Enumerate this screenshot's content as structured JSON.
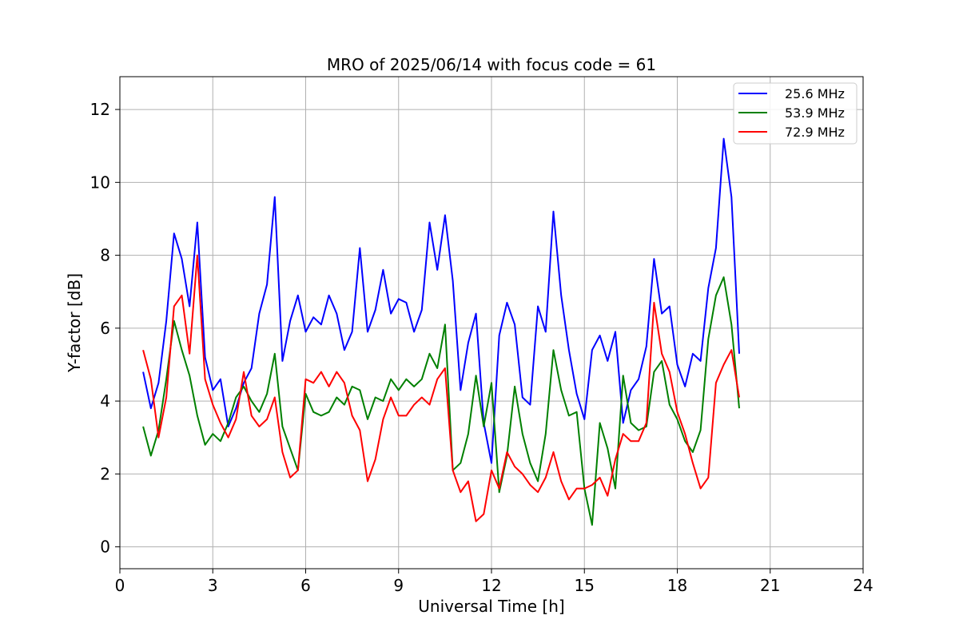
{
  "chart_data": {
    "type": "line",
    "title": "MRO of 2025/06/14 with focus code = 61",
    "xlabel": "Universal Time [h]",
    "ylabel": "Y-factor [dB]",
    "xlim": [
      0,
      24
    ],
    "ylim": [
      -0.6,
      12.9
    ],
    "xticks": [
      0,
      3,
      6,
      9,
      12,
      15,
      18,
      21,
      24
    ],
    "yticks": [
      0,
      2,
      4,
      6,
      8,
      10,
      12
    ],
    "grid": true,
    "legend_position": "top-right",
    "series": [
      {
        "name": "25.6 MHz",
        "color": "#0000ff",
        "x": [
          0.75,
          1.0,
          1.25,
          1.5,
          1.75,
          2.0,
          2.25,
          2.5,
          2.75,
          3.0,
          3.25,
          3.5,
          3.75,
          4.0,
          4.25,
          4.5,
          4.75,
          5.0,
          5.25,
          5.5,
          5.75,
          6.0,
          6.25,
          6.5,
          6.75,
          7.0,
          7.25,
          7.5,
          7.75,
          8.0,
          8.25,
          8.5,
          8.75,
          9.0,
          9.25,
          9.5,
          9.75,
          10.0,
          10.25,
          10.5,
          10.75,
          11.0,
          11.25,
          11.5,
          11.75,
          12.0,
          12.25,
          12.5,
          12.75,
          13.0,
          13.25,
          13.5,
          13.75,
          14.0,
          14.25,
          14.5,
          14.75,
          15.0,
          15.25,
          15.5,
          15.75,
          16.0,
          16.25,
          16.5,
          16.75,
          17.0,
          17.25,
          17.5,
          17.75,
          18.0,
          18.25,
          18.5,
          18.75,
          19.0,
          19.25,
          19.5,
          19.75,
          20.0
        ],
        "y": [
          4.8,
          3.8,
          4.5,
          6.2,
          8.6,
          7.9,
          6.6,
          8.9,
          5.2,
          4.3,
          4.6,
          3.3,
          3.8,
          4.5,
          4.9,
          6.4,
          7.2,
          9.6,
          5.1,
          6.2,
          6.9,
          5.9,
          6.3,
          6.1,
          6.9,
          6.4,
          5.4,
          5.9,
          8.2,
          5.9,
          6.5,
          7.6,
          6.4,
          6.8,
          6.7,
          5.9,
          6.5,
          8.9,
          7.6,
          9.1,
          7.3,
          4.3,
          5.6,
          6.4,
          3.4,
          2.3,
          5.8,
          6.7,
          6.1,
          4.1,
          3.9,
          6.6,
          5.9,
          9.2,
          6.9,
          5.4,
          4.2,
          3.5,
          5.4,
          5.8,
          5.1,
          5.9,
          3.4,
          4.3,
          4.6,
          5.5,
          7.9,
          6.4,
          6.6,
          5.0,
          4.4,
          5.3,
          5.1,
          7.1,
          8.2,
          11.2,
          9.6,
          5.3
        ]
      },
      {
        "name": "53.9 MHz",
        "color": "#008000",
        "x": [
          0.75,
          1.0,
          1.25,
          1.5,
          1.75,
          2.0,
          2.25,
          2.5,
          2.75,
          3.0,
          3.25,
          3.5,
          3.75,
          4.0,
          4.25,
          4.5,
          4.75,
          5.0,
          5.25,
          5.5,
          5.75,
          6.0,
          6.25,
          6.5,
          6.75,
          7.0,
          7.25,
          7.5,
          7.75,
          8.0,
          8.25,
          8.5,
          8.75,
          9.0,
          9.25,
          9.5,
          9.75,
          10.0,
          10.25,
          10.5,
          10.75,
          11.0,
          11.25,
          11.5,
          11.75,
          12.0,
          12.25,
          12.5,
          12.75,
          13.0,
          13.25,
          13.5,
          13.75,
          14.0,
          14.25,
          14.5,
          14.75,
          15.0,
          15.25,
          15.5,
          15.75,
          16.0,
          16.25,
          16.5,
          16.75,
          17.0,
          17.25,
          17.5,
          17.75,
          18.0,
          18.25,
          18.5,
          18.75,
          19.0,
          19.25,
          19.5,
          19.75,
          20.0
        ],
        "y": [
          3.3,
          2.5,
          3.2,
          4.6,
          6.2,
          5.4,
          4.7,
          3.6,
          2.8,
          3.1,
          2.9,
          3.4,
          4.1,
          4.4,
          4.0,
          3.7,
          4.2,
          5.3,
          3.3,
          2.7,
          2.1,
          4.2,
          3.7,
          3.6,
          3.7,
          4.1,
          3.9,
          4.4,
          4.3,
          3.5,
          4.1,
          4.0,
          4.6,
          4.3,
          4.6,
          4.4,
          4.6,
          5.3,
          4.9,
          6.1,
          2.1,
          2.3,
          3.1,
          4.7,
          3.3,
          4.5,
          1.5,
          2.5,
          4.4,
          3.1,
          2.3,
          1.8,
          3.1,
          5.4,
          4.3,
          3.6,
          3.7,
          1.6,
          0.6,
          3.4,
          2.7,
          1.6,
          4.7,
          3.4,
          3.2,
          3.3,
          4.8,
          5.1,
          3.9,
          3.5,
          2.9,
          2.6,
          3.2,
          5.7,
          6.9,
          7.4,
          6.1,
          3.8
        ]
      },
      {
        "name": "72.9 MHz",
        "color": "#ff0000",
        "x": [
          0.75,
          1.0,
          1.25,
          1.5,
          1.75,
          2.0,
          2.25,
          2.5,
          2.75,
          3.0,
          3.25,
          3.5,
          3.75,
          4.0,
          4.25,
          4.5,
          4.75,
          5.0,
          5.25,
          5.5,
          5.75,
          6.0,
          6.25,
          6.5,
          6.75,
          7.0,
          7.25,
          7.5,
          7.75,
          8.0,
          8.25,
          8.5,
          8.75,
          9.0,
          9.25,
          9.5,
          9.75,
          10.0,
          10.25,
          10.5,
          10.75,
          11.0,
          11.25,
          11.5,
          11.75,
          12.0,
          12.25,
          12.5,
          12.75,
          13.0,
          13.25,
          13.5,
          13.75,
          14.0,
          14.25,
          14.5,
          14.75,
          15.0,
          15.25,
          15.5,
          15.75,
          16.0,
          16.25,
          16.5,
          16.75,
          17.0,
          17.25,
          17.5,
          17.75,
          18.0,
          18.25,
          18.5,
          18.75,
          19.0,
          19.25,
          19.5,
          19.75,
          20.0
        ],
        "y": [
          5.4,
          4.6,
          3.0,
          4.1,
          6.6,
          6.9,
          5.3,
          8.0,
          4.6,
          3.9,
          3.4,
          3.0,
          3.5,
          4.8,
          3.6,
          3.3,
          3.5,
          4.1,
          2.6,
          1.9,
          2.1,
          4.6,
          4.5,
          4.8,
          4.4,
          4.8,
          4.5,
          3.6,
          3.2,
          1.8,
          2.4,
          3.5,
          4.1,
          3.6,
          3.6,
          3.9,
          4.1,
          3.9,
          4.6,
          4.9,
          2.1,
          1.5,
          1.8,
          0.7,
          0.9,
          2.1,
          1.6,
          2.6,
          2.2,
          2.0,
          1.7,
          1.5,
          1.9,
          2.6,
          1.8,
          1.3,
          1.6,
          1.6,
          1.7,
          1.9,
          1.4,
          2.4,
          3.1,
          2.9,
          2.9,
          3.4,
          6.7,
          5.3,
          4.8,
          3.7,
          3.1,
          2.3,
          1.6,
          1.9,
          4.5,
          5.0,
          5.4,
          4.1
        ]
      }
    ]
  }
}
